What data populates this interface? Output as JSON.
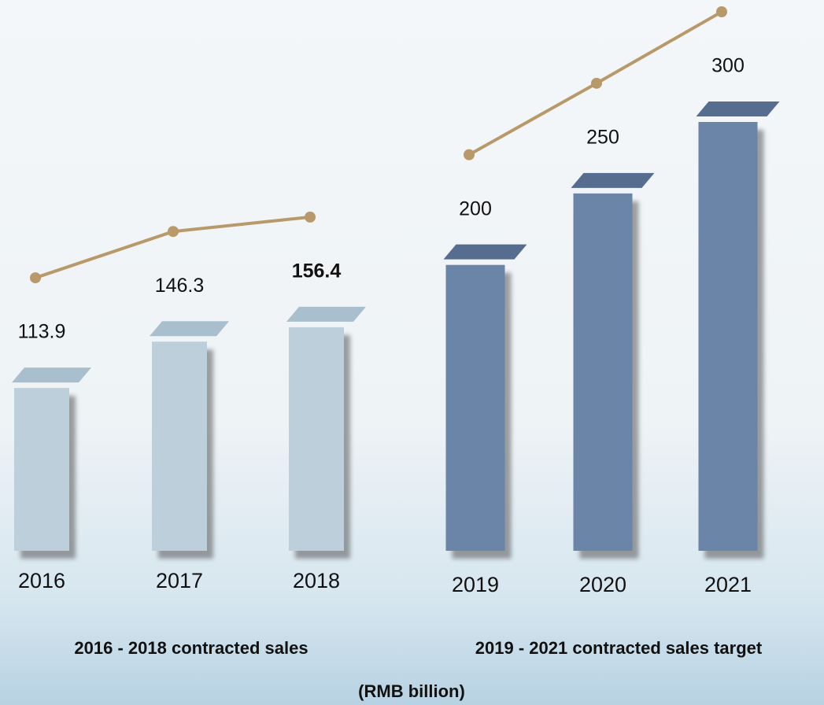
{
  "chart_data": {
    "type": "bar",
    "unit_label": "(RMB billion)",
    "line_color": "#b8996a",
    "series": [
      {
        "name": "2016 - 2018 contracted sales",
        "categories": [
          "2016",
          "2017",
          "2018"
        ],
        "values": [
          113.9,
          146.3,
          156.4
        ],
        "color": "#bccfdb",
        "top_color": "#a9bfcd"
      },
      {
        "name": "2019 - 2021 contracted sales target",
        "categories": [
          "2019",
          "2020",
          "2021"
        ],
        "values": [
          200,
          250,
          300
        ],
        "color": "#6a85a8",
        "top_color": "#566d90"
      }
    ]
  }
}
